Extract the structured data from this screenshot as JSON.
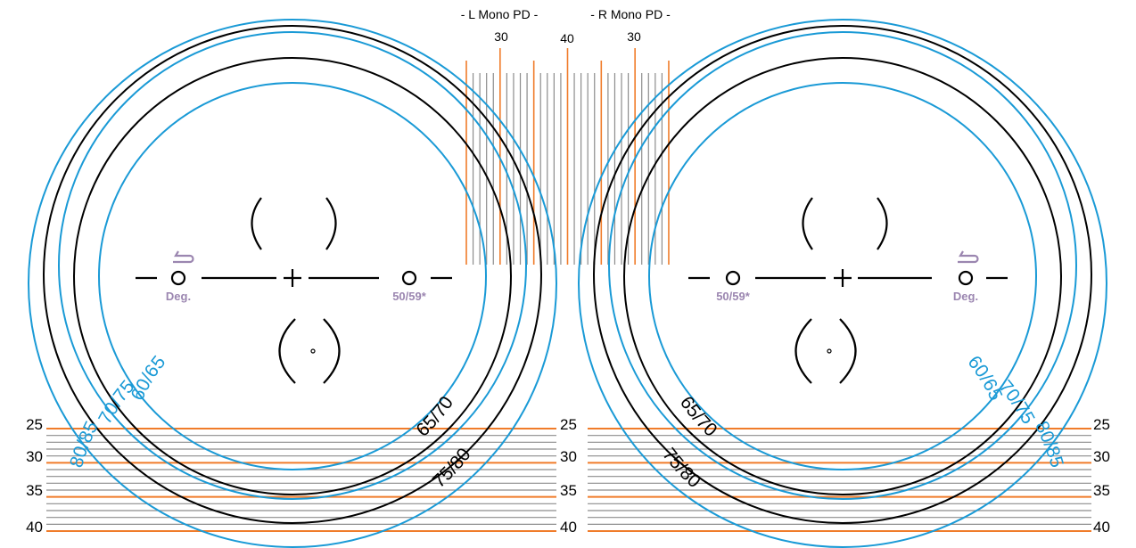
{
  "colors": {
    "blue": "#1a9ad6",
    "black": "#000000",
    "orange": "#f07c2a",
    "gray": "#8c8c8c",
    "purple": "#9b86b0"
  },
  "pd_header": {
    "left": "- L Mono PD -",
    "right": "- R Mono PD -"
  },
  "pd_scale_labels": [
    "30",
    "40",
    "30"
  ],
  "height_scale_labels": [
    "25",
    "30",
    "35",
    "40"
  ],
  "ring_labels": {
    "blue_inner": "60/65",
    "blue_mid": "70/75",
    "blue_outer": "80/85",
    "black_inner": "65/70",
    "black_outer": "75/80"
  },
  "left_lens": {
    "left_marker_label": "Deg.",
    "right_marker_label": "50/59*"
  },
  "right_lens": {
    "left_marker_label": "50/59*",
    "right_marker_label": "Deg."
  },
  "icons": {
    "deg_marker": "rotate-arrow-icon"
  }
}
